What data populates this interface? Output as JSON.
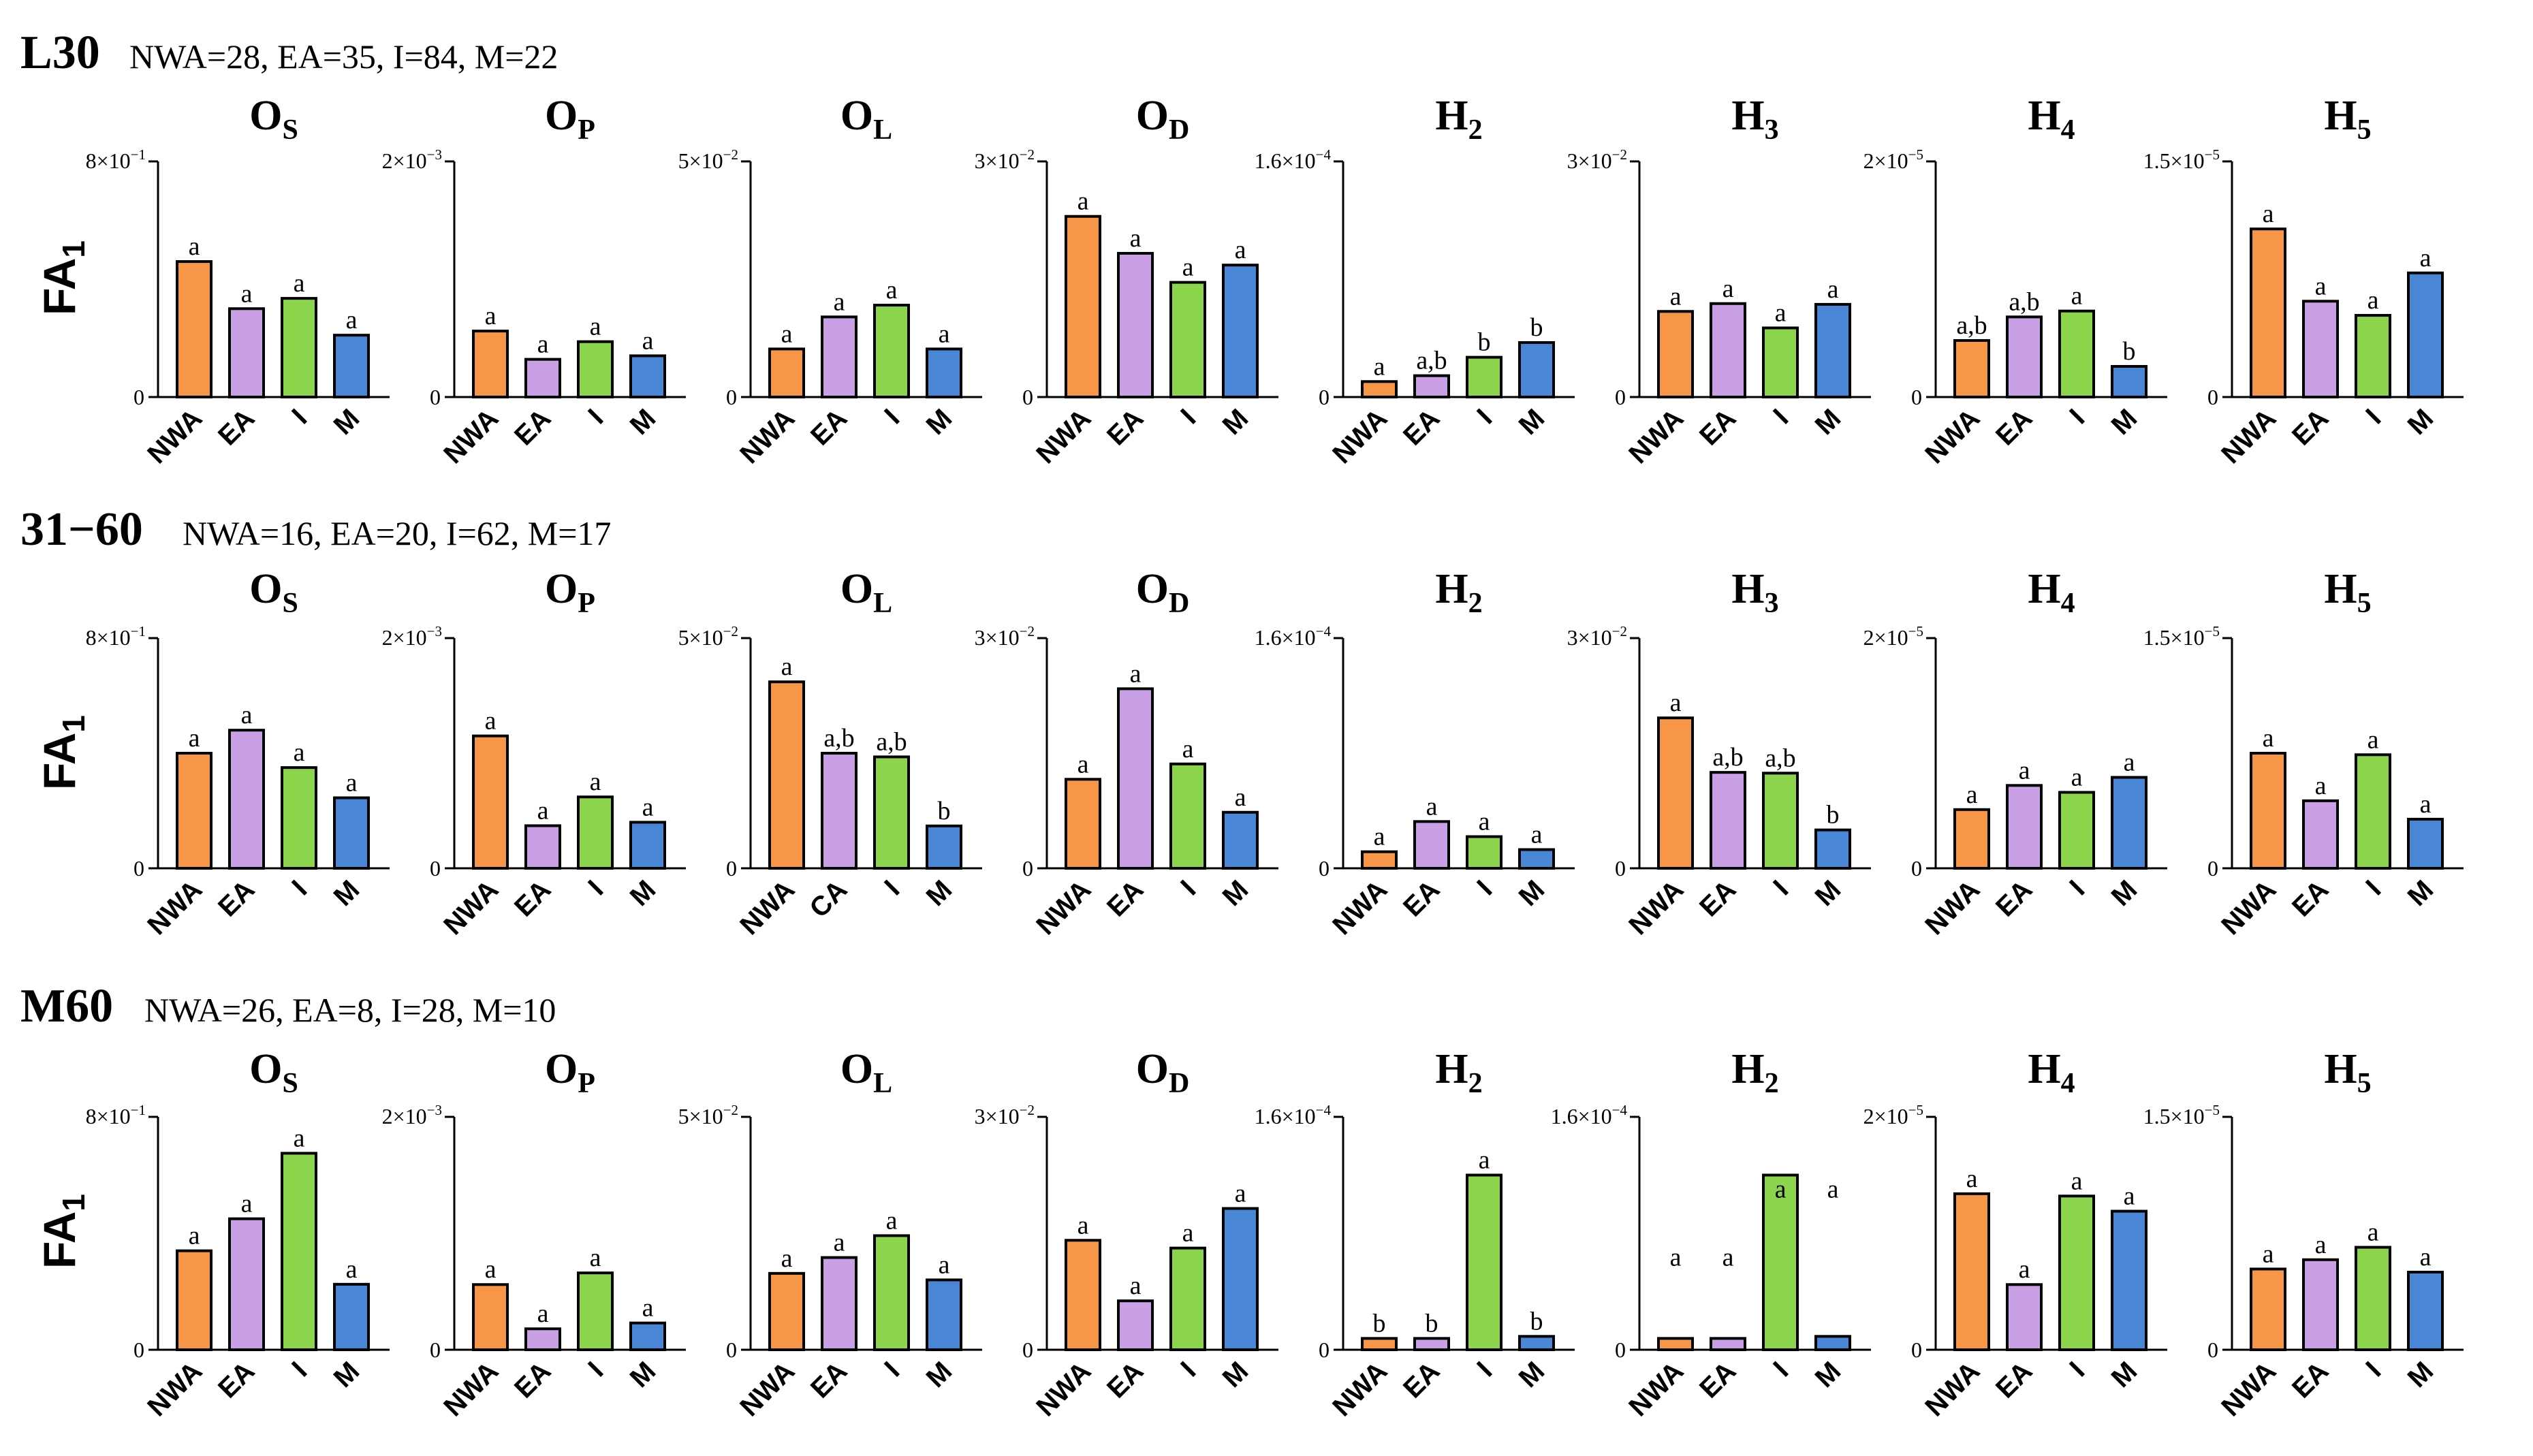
{
  "colors": {
    "NWA": "#F79646",
    "EA": "#C9A0E6",
    "CA": "#C9A0E6",
    "I": "#8CD44C",
    "M": "#4A86D6"
  },
  "rows": [
    {
      "title": "L30",
      "counts": "NWA=28, EA=35, I=84, M=22",
      "ylabel": "FA",
      "ylabel_sub": "1"
    },
    {
      "title": "31−60",
      "counts": "NWA=16, EA=20, I=62, M=17",
      "ylabel": "FA",
      "ylabel_sub": "1"
    },
    {
      "title": "M60",
      "counts": "NWA=26, EA=8, I=28, M=10",
      "ylabel": "FA",
      "ylabel_sub": "1"
    }
  ],
  "chart_data": [
    {
      "row": 0,
      "type": "bar",
      "title": "O",
      "title_sub": "S",
      "categories": [
        "NWA",
        "EA",
        "I",
        "M"
      ],
      "values": [
        0.46,
        0.3,
        0.335,
        0.21
      ],
      "letters": [
        "a",
        "a",
        "a",
        "a"
      ],
      "ylim": [
        0,
        0.8
      ],
      "ytick_mantissa": "8",
      "ytick_exponent": "−1"
    },
    {
      "row": 0,
      "type": "bar",
      "title": "O",
      "title_sub": "P",
      "categories": [
        "NWA",
        "EA",
        "I",
        "M"
      ],
      "values": [
        0.00056,
        0.00032,
        0.00047,
        0.00035
      ],
      "letters": [
        "a",
        "a",
        "a",
        "a"
      ],
      "ylim": [
        0,
        0.002
      ],
      "ytick_mantissa": "2",
      "ytick_exponent": "−3"
    },
    {
      "row": 0,
      "type": "bar",
      "title": "O",
      "title_sub": "L",
      "categories": [
        "NWA",
        "EA",
        "I",
        "M"
      ],
      "values": [
        0.0102,
        0.017,
        0.0195,
        0.0102
      ],
      "letters": [
        "a",
        "a",
        "a",
        "a"
      ],
      "ylim": [
        0,
        0.05
      ],
      "ytick_mantissa": "5",
      "ytick_exponent": "−2"
    },
    {
      "row": 0,
      "type": "bar",
      "title": "O",
      "title_sub": "D",
      "categories": [
        "NWA",
        "EA",
        "I",
        "M"
      ],
      "values": [
        0.023,
        0.0183,
        0.0146,
        0.0168
      ],
      "letters": [
        "a",
        "a",
        "a",
        "a"
      ],
      "ylim": [
        0,
        0.03
      ],
      "ytick_mantissa": "3",
      "ytick_exponent": "−2"
    },
    {
      "row": 0,
      "type": "bar",
      "title": "H",
      "title_sub": "2",
      "categories": [
        "NWA",
        "EA",
        "I",
        "M"
      ],
      "values": [
        1.05e-05,
        1.45e-05,
        2.7e-05,
        3.7e-05
      ],
      "letters": [
        "a",
        "a,b",
        "b",
        "b"
      ],
      "ylim": [
        0,
        0.00016
      ],
      "ytick_mantissa": "1.6",
      "ytick_exponent": "−4"
    },
    {
      "row": 0,
      "type": "bar",
      "title": "H",
      "title_sub": "3",
      "categories": [
        "NWA",
        "EA",
        "I",
        "M"
      ],
      "values": [
        0.0109,
        0.0119,
        0.0088,
        0.0118
      ],
      "letters": [
        "a",
        "a",
        "a",
        "a"
      ],
      "ylim": [
        0,
        0.03
      ],
      "ytick_mantissa": "3",
      "ytick_exponent": "−2"
    },
    {
      "row": 0,
      "type": "bar",
      "title": "H",
      "title_sub": "4",
      "categories": [
        "NWA",
        "EA",
        "I",
        "M"
      ],
      "values": [
        4.8e-06,
        6.8e-06,
        7.3e-06,
        2.6e-06
      ],
      "letters": [
        "a,b",
        "a,b",
        "a",
        "b"
      ],
      "ylim": [
        0,
        2e-05
      ],
      "ytick_mantissa": "2",
      "ytick_exponent": "−5"
    },
    {
      "row": 0,
      "type": "bar",
      "title": "H",
      "title_sub": "5",
      "categories": [
        "NWA",
        "EA",
        "I",
        "M"
      ],
      "values": [
        1.07e-05,
        6.1e-06,
        5.2e-06,
        7.9e-06
      ],
      "letters": [
        "a",
        "a",
        "a",
        "a"
      ],
      "ylim": [
        0,
        1.5e-05
      ],
      "ytick_mantissa": "1.5",
      "ytick_exponent": "−5"
    },
    {
      "row": 1,
      "type": "bar",
      "title": "O",
      "title_sub": "S",
      "categories": [
        "NWA",
        "EA",
        "I",
        "M"
      ],
      "values": [
        0.4,
        0.48,
        0.35,
        0.245
      ],
      "letters": [
        "a",
        "a",
        "a",
        "a"
      ],
      "ylim": [
        0,
        0.8
      ],
      "ytick_mantissa": "8",
      "ytick_exponent": "−1"
    },
    {
      "row": 1,
      "type": "bar",
      "title": "O",
      "title_sub": "P",
      "categories": [
        "NWA",
        "EA",
        "I",
        "M"
      ],
      "values": [
        0.00115,
        0.00037,
        0.00062,
        0.0004
      ],
      "letters": [
        "a",
        "a",
        "a",
        "a"
      ],
      "ylim": [
        0,
        0.002
      ],
      "ytick_mantissa": "2",
      "ytick_exponent": "−3"
    },
    {
      "row": 1,
      "type": "bar",
      "title": "O",
      "title_sub": "L",
      "categories": [
        "NWA",
        "CA",
        "I",
        "M"
      ],
      "values": [
        0.0405,
        0.025,
        0.0242,
        0.0092
      ],
      "letters": [
        "a",
        "a,b",
        "a,b",
        "b"
      ],
      "ylim": [
        0,
        0.05
      ],
      "ytick_mantissa": "5",
      "ytick_exponent": "−2"
    },
    {
      "row": 1,
      "type": "bar",
      "title": "O",
      "title_sub": "D",
      "categories": [
        "NWA",
        "EA",
        "I",
        "M"
      ],
      "values": [
        0.0116,
        0.0234,
        0.0136,
        0.0073
      ],
      "letters": [
        "a",
        "a",
        "a",
        "a"
      ],
      "ylim": [
        0,
        0.03
      ],
      "ytick_mantissa": "3",
      "ytick_exponent": "−2"
    },
    {
      "row": 1,
      "type": "bar",
      "title": "H",
      "title_sub": "2",
      "categories": [
        "NWA",
        "EA",
        "I",
        "M"
      ],
      "values": [
        1.15e-05,
        3.25e-05,
        2.2e-05,
        1.3e-05
      ],
      "letters": [
        "a",
        "a",
        "a",
        "a"
      ],
      "ylim": [
        0,
        0.00016
      ],
      "ytick_mantissa": "1.6",
      "ytick_exponent": "−4"
    },
    {
      "row": 1,
      "type": "bar",
      "title": "H",
      "title_sub": "3",
      "categories": [
        "NWA",
        "EA",
        "I",
        "M"
      ],
      "values": [
        0.0196,
        0.0125,
        0.0124,
        0.005
      ],
      "letters": [
        "a",
        "a,b",
        "a,b",
        "b"
      ],
      "ylim": [
        0,
        0.03
      ],
      "ytick_mantissa": "3",
      "ytick_exponent": "−2"
    },
    {
      "row": 1,
      "type": "bar",
      "title": "H",
      "title_sub": "4",
      "categories": [
        "NWA",
        "EA",
        "I",
        "M"
      ],
      "values": [
        5.1e-06,
        7.2e-06,
        6.6e-06,
        7.9e-06
      ],
      "letters": [
        "a",
        "a",
        "a",
        "a"
      ],
      "ylim": [
        0,
        2e-05
      ],
      "ytick_mantissa": "2",
      "ytick_exponent": "−5"
    },
    {
      "row": 1,
      "type": "bar",
      "title": "H",
      "title_sub": "5",
      "categories": [
        "NWA",
        "EA",
        "I",
        "M"
      ],
      "values": [
        7.5e-06,
        4.4e-06,
        7.4e-06,
        3.2e-06
      ],
      "letters": [
        "a",
        "a",
        "a",
        "a"
      ],
      "ylim": [
        0,
        1.5e-05
      ],
      "ytick_mantissa": "1.5",
      "ytick_exponent": "−5"
    },
    {
      "row": 2,
      "type": "bar",
      "title": "O",
      "title_sub": "S",
      "categories": [
        "NWA",
        "EA",
        "I",
        "M"
      ],
      "values": [
        0.34,
        0.45,
        0.675,
        0.225
      ],
      "letters": [
        "a",
        "a",
        "a",
        "a"
      ],
      "ylim": [
        0,
        0.8
      ],
      "ytick_mantissa": "8",
      "ytick_exponent": "−1"
    },
    {
      "row": 2,
      "type": "bar",
      "title": "O",
      "title_sub": "P",
      "categories": [
        "NWA",
        "EA",
        "I",
        "M"
      ],
      "values": [
        0.00056,
        0.00018,
        0.00066,
        0.00023
      ],
      "letters": [
        "a",
        "a",
        "a",
        "a"
      ],
      "ylim": [
        0,
        0.002
      ],
      "ytick_mantissa": "2",
      "ytick_exponent": "−3"
    },
    {
      "row": 2,
      "type": "bar",
      "title": "O",
      "title_sub": "L",
      "categories": [
        "NWA",
        "EA",
        "I",
        "M"
      ],
      "values": [
        0.0164,
        0.0198,
        0.0245,
        0.015
      ],
      "letters": [
        "a",
        "a",
        "a",
        "a"
      ],
      "ylim": [
        0,
        0.05
      ],
      "ytick_mantissa": "5",
      "ytick_exponent": "−2"
    },
    {
      "row": 2,
      "type": "bar",
      "title": "O",
      "title_sub": "D",
      "categories": [
        "NWA",
        "EA",
        "I",
        "M"
      ],
      "values": [
        0.0141,
        0.0063,
        0.0131,
        0.0182
      ],
      "letters": [
        "a",
        "a",
        "a",
        "a"
      ],
      "ylim": [
        0,
        0.03
      ],
      "ytick_mantissa": "3",
      "ytick_exponent": "−2"
    },
    {
      "row": 2,
      "type": "bar",
      "title": "H",
      "title_sub": "2",
      "categories": [
        "NWA",
        "EA",
        "I",
        "M"
      ],
      "values": [
        7.8e-06,
        7.8e-06,
        0.00012,
        9.2e-06
      ],
      "letters": [
        "b",
        "b",
        "a",
        "b"
      ],
      "ylim": [
        0,
        0.00016
      ],
      "ytick_mantissa": "1.6",
      "ytick_exponent": "−4"
    },
    {
      "row": 2,
      "type": "bar",
      "title": "H",
      "title_sub": "2",
      "categories": [
        "NWA",
        "EA",
        "I",
        "M"
      ],
      "values": [
        7.8e-06,
        7.8e-06,
        0.00012,
        9.2e-06
      ],
      "letters": [
        "a",
        "a",
        "a",
        "a"
      ],
      "letter_values": [
        5.3e-05,
        5.3e-05,
        0.0001,
        0.0001
      ],
      "ylim": [
        0,
        0.00016
      ],
      "ytick_mantissa": "1.6",
      "ytick_exponent": "−4"
    },
    {
      "row": 2,
      "type": "bar",
      "title": "H",
      "title_sub": "4",
      "categories": [
        "NWA",
        "EA",
        "I",
        "M"
      ],
      "values": [
        1.34e-05,
        5.6e-06,
        1.32e-05,
        1.19e-05
      ],
      "letters": [
        "a",
        "a",
        "a",
        "a"
      ],
      "ylim": [
        0,
        2e-05
      ],
      "ytick_mantissa": "2",
      "ytick_exponent": "−5"
    },
    {
      "row": 2,
      "type": "bar",
      "title": "H",
      "title_sub": "5",
      "categories": [
        "NWA",
        "EA",
        "I",
        "M"
      ],
      "values": [
        5.2e-06,
        5.8e-06,
        6.6e-06,
        5e-06
      ],
      "letters": [
        "a",
        "a",
        "a",
        "a"
      ],
      "ylim": [
        0,
        1.5e-05
      ],
      "ytick_mantissa": "1.5",
      "ytick_exponent": "−5"
    }
  ]
}
